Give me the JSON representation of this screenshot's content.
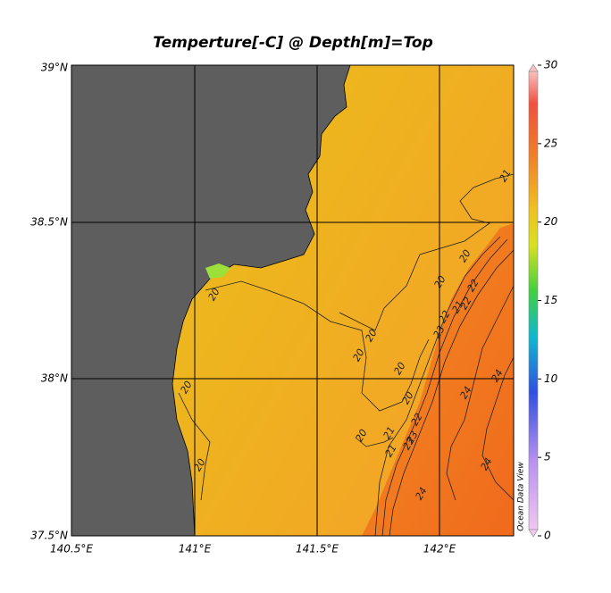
{
  "title": "Temperture[-C] @ Depth[m]=Top",
  "lon_ticks": [
    "140.5°E",
    "141°E",
    "141.5°E",
    "142°E"
  ],
  "lat_ticks": [
    "39°N",
    "38.5°N",
    "38°N",
    "37.5°N"
  ],
  "colorbar": {
    "ticks": [
      0,
      5,
      10,
      15,
      20,
      25,
      30
    ]
  },
  "watermark": "Ocean Data View",
  "contour_labels": [
    "20",
    "20",
    "20",
    "20",
    "20",
    "20",
    "20",
    "20",
    "21",
    "20",
    "21",
    "22",
    "23",
    "22",
    "23",
    "22",
    "21",
    "23",
    "22",
    "24",
    "24",
    "24",
    "24",
    "20",
    "21"
  ]
}
